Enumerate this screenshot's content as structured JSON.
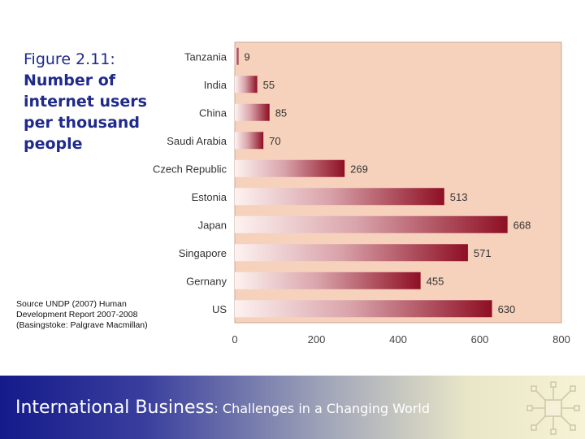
{
  "caption": {
    "figure_number": "Figure 2.11:",
    "title": "Number of internet users per thousand people"
  },
  "source_note": "Source UNDP (2007) Human Development Report 2007-2008 (Basingstoke: Palgrave Macmillan)",
  "footer": {
    "title_main": "International Business",
    "title_sub": ": Challenges in a Changing World",
    "logo_icon": "network-hub-icon"
  },
  "colors": {
    "plot_background": "#f6d2bd",
    "bar_start": "#fdf2f0",
    "bar_end": "#8e0f24",
    "caption_text": "#1f2a8c",
    "footer_start": "#141a8a",
    "footer_end": "#f6f3d6"
  },
  "chart_data": {
    "type": "bar",
    "orientation": "horizontal",
    "categories": [
      "Tanzania",
      "India",
      "China",
      "Saudi Arabia",
      "Czech Republic",
      "Estonia",
      "Japan",
      "Singapore",
      "Gernany",
      "US"
    ],
    "values": [
      9,
      55,
      85,
      70,
      269,
      513,
      668,
      571,
      455,
      630
    ],
    "value_labels": [
      "9",
      "55",
      "85",
      "70",
      "269",
      "513",
      "668",
      "571",
      "455",
      "630"
    ],
    "xlim": [
      0,
      800
    ],
    "xticks": [
      0,
      200,
      400,
      600,
      800
    ],
    "xtick_labels": [
      "0",
      "200",
      "400",
      "600",
      "800"
    ],
    "grid": false,
    "legend": "none"
  }
}
